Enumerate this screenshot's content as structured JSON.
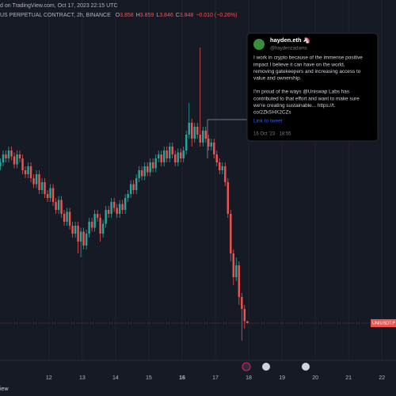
{
  "chart_data": {
    "type": "candlestick",
    "header_line1": "d on TradingView.com, Oct 17, 2023 22:15 UTC",
    "header_line2": "US PERPETUAL CONTRACT, 2h, BINANCE",
    "ohlc_keys": [
      "O",
      "H",
      "L",
      "C"
    ],
    "change": "−0.010 (−0.26%)",
    "symbol_label": "UNIUSDT.P",
    "footer": "iew",
    "up_color": "#26a69a",
    "down_color": "#ef5350",
    "ylim": [
      3.6,
      5.4
    ],
    "xlim": [
      -0.14,
      142.57
    ],
    "xticks": [
      {
        "value": 17.5,
        "label": "12"
      },
      {
        "value": 29.5,
        "label": "13"
      },
      {
        "value": 41.5,
        "label": "14"
      },
      {
        "value": 53.5,
        "label": "15"
      },
      {
        "value": 65.5,
        "label": "16"
      },
      {
        "value": 77.5,
        "label": "17"
      },
      {
        "value": 89.5,
        "label": "18"
      },
      {
        "value": 101.5,
        "label": "19"
      },
      {
        "value": 113.5,
        "label": "20"
      },
      {
        "value": 125.5,
        "label": "21"
      },
      {
        "value": 137.5,
        "label": "22"
      }
    ],
    "grid": true,
    "ohlc": [
      [
        4.64,
        4.68,
        4.62,
        4.66
      ],
      [
        4.66,
        4.72,
        4.64,
        4.7
      ],
      [
        4.7,
        4.72,
        4.66,
        4.68
      ],
      [
        4.68,
        4.74,
        4.66,
        4.72
      ],
      [
        4.72,
        4.74,
        4.67,
        4.69
      ],
      [
        4.69,
        4.71,
        4.63,
        4.65
      ],
      [
        4.65,
        4.72,
        4.63,
        4.7
      ],
      [
        4.7,
        4.72,
        4.66,
        4.68
      ],
      [
        4.68,
        4.7,
        4.6,
        4.62
      ],
      [
        4.62,
        4.64,
        4.58,
        4.6
      ],
      [
        4.6,
        4.66,
        4.58,
        4.64
      ],
      [
        4.64,
        4.66,
        4.56,
        4.58
      ],
      [
        4.58,
        4.6,
        4.53,
        4.55
      ],
      [
        4.55,
        4.62,
        4.53,
        4.6
      ],
      [
        4.6,
        4.62,
        4.5,
        4.52
      ],
      [
        4.52,
        4.58,
        4.5,
        4.56
      ],
      [
        4.56,
        4.58,
        4.48,
        4.5
      ],
      [
        4.5,
        4.52,
        4.46,
        4.48
      ],
      [
        4.48,
        4.55,
        4.46,
        4.53
      ],
      [
        4.53,
        4.55,
        4.44,
        4.46
      ],
      [
        4.46,
        4.48,
        4.4,
        4.42
      ],
      [
        4.42,
        4.49,
        4.4,
        4.47
      ],
      [
        4.47,
        4.49,
        4.38,
        4.4
      ],
      [
        4.4,
        4.42,
        4.34,
        4.36
      ],
      [
        4.36,
        4.43,
        4.34,
        4.41
      ],
      [
        4.41,
        4.43,
        4.32,
        4.34
      ],
      [
        4.34,
        4.36,
        4.28,
        4.3
      ],
      [
        4.3,
        4.36,
        4.28,
        4.34
      ],
      [
        4.34,
        4.36,
        4.2,
        4.26
      ],
      [
        4.26,
        4.33,
        4.18,
        4.31
      ],
      [
        4.31,
        4.33,
        4.22,
        4.24
      ],
      [
        4.24,
        4.32,
        4.22,
        4.3
      ],
      [
        4.3,
        4.38,
        4.28,
        4.36
      ],
      [
        4.36,
        4.38,
        4.31,
        4.33
      ],
      [
        4.33,
        4.42,
        4.31,
        4.4
      ],
      [
        4.4,
        4.42,
        4.36,
        4.38
      ],
      [
        4.38,
        4.4,
        4.26,
        4.3
      ],
      [
        4.3,
        4.37,
        4.28,
        4.35
      ],
      [
        4.35,
        4.44,
        4.33,
        4.42
      ],
      [
        4.42,
        4.44,
        4.38,
        4.4
      ],
      [
        4.4,
        4.48,
        4.38,
        4.46
      ],
      [
        4.46,
        4.48,
        4.41,
        4.43
      ],
      [
        4.43,
        4.45,
        4.38,
        4.4
      ],
      [
        4.4,
        4.47,
        4.38,
        4.45
      ],
      [
        4.45,
        4.47,
        4.4,
        4.42
      ],
      [
        4.42,
        4.5,
        4.4,
        4.48
      ],
      [
        4.48,
        4.52,
        4.46,
        4.5
      ],
      [
        4.5,
        4.57,
        4.48,
        4.55
      ],
      [
        4.55,
        4.57,
        4.5,
        4.52
      ],
      [
        4.52,
        4.6,
        4.5,
        4.58
      ],
      [
        4.58,
        4.64,
        4.56,
        4.62
      ],
      [
        4.62,
        4.64,
        4.57,
        4.59
      ],
      [
        4.59,
        4.66,
        4.57,
        4.64
      ],
      [
        4.64,
        4.66,
        4.59,
        4.61
      ],
      [
        4.61,
        4.68,
        4.59,
        4.66
      ],
      [
        4.66,
        4.68,
        4.61,
        4.63
      ],
      [
        4.63,
        4.7,
        4.61,
        4.68
      ],
      [
        4.68,
        4.72,
        4.66,
        4.7
      ],
      [
        4.7,
        4.72,
        4.64,
        4.66
      ],
      [
        4.66,
        4.74,
        4.64,
        4.72
      ],
      [
        4.72,
        4.74,
        4.66,
        4.68
      ],
      [
        4.68,
        4.76,
        4.66,
        4.74
      ],
      [
        4.74,
        4.76,
        4.68,
        4.7
      ],
      [
        4.7,
        4.72,
        4.64,
        4.66
      ],
      [
        4.66,
        4.73,
        4.64,
        4.71
      ],
      [
        4.71,
        4.73,
        4.66,
        4.68
      ],
      [
        4.68,
        4.74,
        4.66,
        4.72
      ],
      [
        4.72,
        4.82,
        4.7,
        4.8
      ],
      [
        4.8,
        4.96,
        4.78,
        4.86
      ],
      [
        4.86,
        4.88,
        4.74,
        4.78
      ],
      [
        4.78,
        4.86,
        4.76,
        4.84
      ],
      [
        4.84,
        4.86,
        4.78,
        4.8
      ],
      [
        4.8,
        5.24,
        4.74,
        4.76
      ],
      [
        4.76,
        4.84,
        4.74,
        4.82
      ],
      [
        4.82,
        4.84,
        4.76,
        4.78
      ],
      [
        4.78,
        4.8,
        4.72,
        4.74
      ],
      [
        4.74,
        4.78,
        4.72,
        4.76
      ],
      [
        4.76,
        4.78,
        4.68,
        4.7
      ],
      [
        4.7,
        4.72,
        4.64,
        4.66
      ],
      [
        4.66,
        4.68,
        4.6,
        4.62
      ],
      [
        4.62,
        4.66,
        4.6,
        4.64
      ],
      [
        4.64,
        4.66,
        4.54,
        4.56
      ],
      [
        4.56,
        4.58,
        4.38,
        4.4
      ],
      [
        4.4,
        4.42,
        4.16,
        4.2
      ],
      [
        4.2,
        4.22,
        4.04,
        4.08
      ],
      [
        4.08,
        4.18,
        4.06,
        4.14
      ],
      [
        4.14,
        4.16,
        3.94,
        3.98
      ],
      [
        3.98,
        4.0,
        3.76,
        3.92
      ],
      [
        3.92,
        3.94,
        3.82,
        3.858
      ],
      [
        3.858,
        3.859,
        3.846,
        3.848
      ]
    ]
  },
  "tweet": {
    "name": "hayden.eth 🦄",
    "handle": "@haydenzadams",
    "paragraphs": [
      [
        "I work in crypto because of the immense positive",
        "impact I believe it can have on the world,",
        "removing gatekeepers and increasing access to",
        "value and ownership."
      ],
      [
        "I'm proud of the ways @Uniswap Labs has",
        "contributed to that effort and want to make sure",
        "we're creating sustainable... https://t.",
        "co/2ZkSHX2CZs"
      ]
    ],
    "link": "Link to tweet",
    "date": "16 Oct '23 · 18:55"
  }
}
